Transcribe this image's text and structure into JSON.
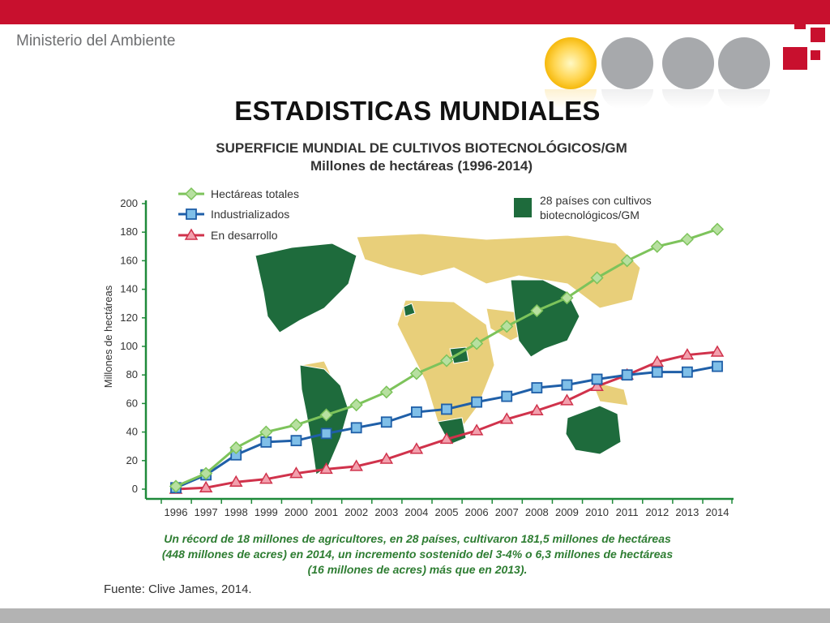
{
  "header": {
    "ministry": "Ministerio del Ambiente"
  },
  "slide": {
    "title": "ESTADISTICAS MUNDIALES",
    "chart_title_line1": "SUPERFICIE MUNDIAL DE CULTIVOS BIOTECNOLÓGICOS/GM",
    "chart_title_line2": "Millones de hectáreas (1996-2014)",
    "footnote_line1": "Un récord de 18 millones de agricultores, en 28 países, cultivaron 181,5 millones de hectáreas",
    "footnote_line2": "(448 millones de acres) en 2014, un incremento sostenido del 3-4% o 6,3 millones de hectáreas",
    "footnote_line3": "(16 millones de acres) más que en 2013).",
    "source": "Fuente: Clive James, 2014."
  },
  "colors": {
    "brand_red": "#c8102e",
    "totals": "#7dc35b",
    "industrialized": "#1f5fa8",
    "developing": "#d0324b",
    "map_gm": "#1e6b3c",
    "map_other": "#e8cf7a",
    "axis": "#1f8a3a"
  },
  "icons": {
    "logo": "ministry-logo-icon",
    "sun": "sun-icon"
  },
  "chart_data": {
    "type": "line",
    "title": "SUPERFICIE MUNDIAL DE CULTIVOS BIOTECNOLÓGICOS/GM",
    "subtitle": "Millones de hectáreas (1996-2014)",
    "xlabel": "",
    "ylabel": "Millones de hectáreas",
    "x": [
      "1996",
      "1997",
      "1998",
      "1999",
      "2000",
      "2001",
      "2002",
      "2003",
      "2004",
      "2005",
      "2006",
      "2007",
      "2008",
      "2009",
      "2010",
      "2011",
      "2012",
      "2013",
      "2014"
    ],
    "ylim": [
      0,
      200
    ],
    "yticks": [
      0,
      20,
      40,
      60,
      80,
      100,
      120,
      140,
      160,
      180,
      200
    ],
    "legend_position": "top-left",
    "series": [
      {
        "name": "Hectáreas totales",
        "color": "#7dc35b",
        "marker": "diamond",
        "values": [
          2,
          11,
          29,
          40,
          45,
          52,
          59,
          68,
          81,
          90,
          102,
          114,
          125,
          134,
          148,
          160,
          170,
          175,
          182
        ]
      },
      {
        "name": "Industrializados",
        "color": "#1f5fa8",
        "marker": "square",
        "values": [
          1,
          10,
          24,
          33,
          34,
          39,
          43,
          47,
          54,
          56,
          61,
          65,
          71,
          73,
          77,
          80,
          82,
          82,
          86
        ]
      },
      {
        "name": "En desarrollo",
        "color": "#d0324b",
        "marker": "triangle",
        "values": [
          0,
          1,
          5,
          7,
          11,
          14,
          16,
          21,
          28,
          35,
          41,
          49,
          55,
          62,
          72,
          80,
          89,
          94,
          96
        ]
      }
    ],
    "map_legend": "28 países con cultivos biotecnológicos/GM",
    "map_legend_line1": "28 países con cultivos",
    "map_legend_line2": "biotecnológicos/GM"
  }
}
